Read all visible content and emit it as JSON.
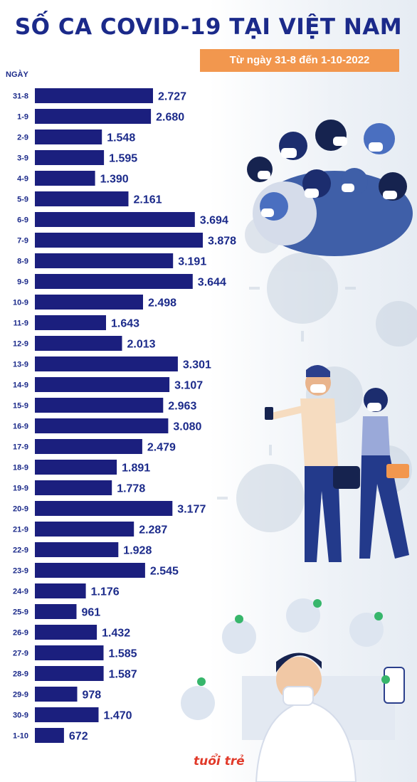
{
  "header": {
    "title": "SỐ CA COVID-19 TẠI VIỆT NAM",
    "subtitle": "Từ ngày 31-8 đến 1-10-2022"
  },
  "logo_text": "tuổi trẻ",
  "colors": {
    "bar": "#1b1f7e",
    "text": "#1b2a8a",
    "badge": "#f2974e"
  },
  "chart_data": {
    "type": "bar",
    "orientation": "horizontal",
    "title": "SỐ CA COVID-19 TẠI VIỆT NAM",
    "subtitle": "Từ ngày 31-8 đến 1-10-2022",
    "ylabel": "NGÀY",
    "grid": false,
    "categories": [
      "31-8",
      "1-9",
      "2-9",
      "3-9",
      "4-9",
      "5-9",
      "6-9",
      "7-9",
      "8-9",
      "9-9",
      "10-9",
      "11-9",
      "12-9",
      "13-9",
      "14-9",
      "15-9",
      "16-9",
      "17-9",
      "18-9",
      "19-9",
      "20-9",
      "21-9",
      "22-9",
      "23-9",
      "24-9",
      "25-9",
      "26-9",
      "27-9",
      "28-9",
      "29-9",
      "30-9",
      "1-10"
    ],
    "values": [
      2727,
      2680,
      1548,
      1595,
      1390,
      2161,
      3694,
      3878,
      3191,
      3644,
      2498,
      1643,
      2013,
      3301,
      3107,
      2963,
      3080,
      2479,
      1891,
      1778,
      3177,
      2287,
      1928,
      2545,
      1176,
      961,
      1432,
      1585,
      1587,
      978,
      1470,
      672
    ],
    "value_labels": [
      "2.727",
      "2.680",
      "1.548",
      "1.595",
      "1.390",
      "2.161",
      "3.694",
      "3.878",
      "3.191",
      "3.644",
      "2.498",
      "1.643",
      "2.013",
      "3.301",
      "3.107",
      "2.963",
      "3.080",
      "2.479",
      "1.891",
      "1.778",
      "3.177",
      "2.287",
      "1.928",
      "2.545",
      "1.176",
      "961",
      "1.432",
      "1.585",
      "1.587",
      "978",
      "1.470",
      "672"
    ]
  }
}
